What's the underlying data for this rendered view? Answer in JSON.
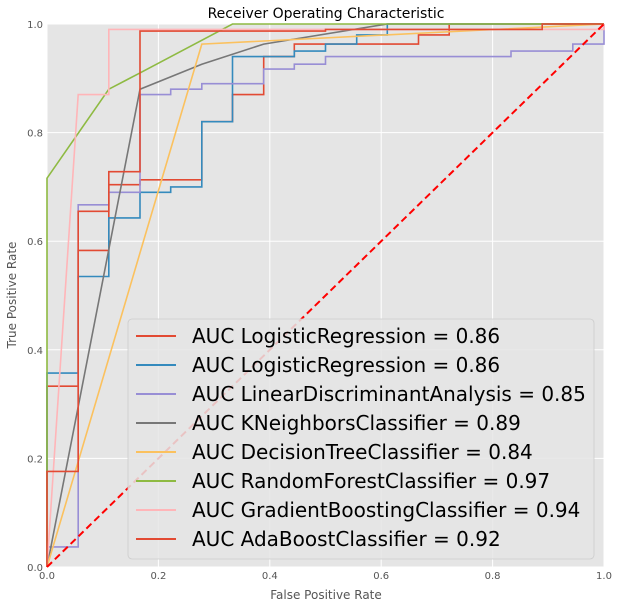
{
  "chart_data": {
    "type": "line",
    "title": "Receiver Operating Characteristic",
    "xlabel": "False Positive Rate",
    "ylabel": "True Positive Rate",
    "xlim": [
      0,
      1
    ],
    "ylim": [
      0,
      1
    ],
    "xticks": [
      "0.0",
      "0.2",
      "0.4",
      "0.6",
      "0.8",
      "1.0"
    ],
    "yticks": [
      "0.0",
      "0.2",
      "0.4",
      "0.6",
      "0.8",
      "1.0"
    ],
    "grid": true,
    "background": "#e5e5e5",
    "legend_position": "lower-right",
    "diagonal": {
      "points": [
        [
          0,
          0
        ],
        [
          1,
          1
        ]
      ],
      "color": "#ff0000",
      "style": "dashed"
    },
    "series": [
      {
        "name": "AUC LogisticRegression = 0.86",
        "color": "#e24a33",
        "points": [
          [
            0,
            0
          ],
          [
            0,
            0.333
          ],
          [
            0.056,
            0.333
          ],
          [
            0.056,
            0.583
          ],
          [
            0.111,
            0.583
          ],
          [
            0.111,
            0.704
          ],
          [
            0.167,
            0.704
          ],
          [
            0.167,
            0.713
          ],
          [
            0.278,
            0.713
          ],
          [
            0.278,
            0.82
          ],
          [
            0.333,
            0.82
          ],
          [
            0.333,
            0.87
          ],
          [
            0.389,
            0.87
          ],
          [
            0.389,
            0.94
          ],
          [
            0.444,
            0.94
          ],
          [
            0.444,
            0.963
          ],
          [
            0.667,
            0.963
          ],
          [
            0.667,
            0.98
          ],
          [
            0.722,
            0.98
          ],
          [
            0.722,
            1
          ],
          [
            1,
            1
          ]
        ]
      },
      {
        "name": "AUC LogisticRegression = 0.86",
        "color": "#348abd",
        "points": [
          [
            0,
            0
          ],
          [
            0,
            0.357
          ],
          [
            0.056,
            0.357
          ],
          [
            0.056,
            0.535
          ],
          [
            0.111,
            0.535
          ],
          [
            0.111,
            0.643
          ],
          [
            0.167,
            0.643
          ],
          [
            0.167,
            0.69
          ],
          [
            0.222,
            0.69
          ],
          [
            0.222,
            0.7
          ],
          [
            0.278,
            0.7
          ],
          [
            0.278,
            0.82
          ],
          [
            0.333,
            0.82
          ],
          [
            0.333,
            0.94
          ],
          [
            0.444,
            0.94
          ],
          [
            0.444,
            0.95
          ],
          [
            0.5,
            0.95
          ],
          [
            0.5,
            0.963
          ],
          [
            0.556,
            0.963
          ],
          [
            0.556,
            0.98
          ],
          [
            0.611,
            0.98
          ],
          [
            0.611,
            1
          ],
          [
            1,
            1
          ]
        ]
      },
      {
        "name": "AUC LinearDiscriminantAnalysis = 0.85",
        "color": "#988ed5",
        "points": [
          [
            0,
            0
          ],
          [
            0,
            0.037
          ],
          [
            0.056,
            0.037
          ],
          [
            0.056,
            0.667
          ],
          [
            0.111,
            0.667
          ],
          [
            0.111,
            0.69
          ],
          [
            0.167,
            0.69
          ],
          [
            0.167,
            0.87
          ],
          [
            0.222,
            0.87
          ],
          [
            0.222,
            0.88
          ],
          [
            0.278,
            0.88
          ],
          [
            0.278,
            0.89
          ],
          [
            0.389,
            0.89
          ],
          [
            0.389,
            0.917
          ],
          [
            0.444,
            0.917
          ],
          [
            0.444,
            0.926
          ],
          [
            0.5,
            0.926
          ],
          [
            0.5,
            0.94
          ],
          [
            0.833,
            0.94
          ],
          [
            0.833,
            0.95
          ],
          [
            0.944,
            0.95
          ],
          [
            0.944,
            0.963
          ],
          [
            1,
            0.963
          ],
          [
            1,
            1
          ]
        ]
      },
      {
        "name": "AUC KNeighborsClassifier = 0.89",
        "color": "#777777",
        "points": [
          [
            0,
            0
          ],
          [
            0.167,
            0.88
          ],
          [
            0.278,
            0.926
          ],
          [
            0.389,
            0.963
          ],
          [
            0.611,
            1
          ],
          [
            1,
            1
          ]
        ]
      },
      {
        "name": "AUC DecisionTreeClassifier = 0.84",
        "color": "#fbc15e",
        "points": [
          [
            0,
            0
          ],
          [
            0.278,
            0.963
          ],
          [
            1,
            1
          ]
        ]
      },
      {
        "name": "AUC RandomForestClassifier = 0.97",
        "color": "#8eba42",
        "points": [
          [
            0,
            0
          ],
          [
            0,
            0.716
          ],
          [
            0.111,
            0.88
          ],
          [
            0.167,
            0.91
          ],
          [
            0.333,
            1
          ],
          [
            1,
            1
          ]
        ]
      },
      {
        "name": "AUC GradientBoostingClassifier = 0.94",
        "color": "#ffb5b8",
        "points": [
          [
            0,
            0
          ],
          [
            0.056,
            0.87
          ],
          [
            0.111,
            0.87
          ],
          [
            0.111,
            0.99
          ],
          [
            0.167,
            0.99
          ],
          [
            1,
            0.99
          ],
          [
            1,
            1
          ]
        ]
      },
      {
        "name": "AUC AdaBoostClassifier = 0.92",
        "color": "#e24a33",
        "points": [
          [
            0,
            0
          ],
          [
            0,
            0.176
          ],
          [
            0.056,
            0.176
          ],
          [
            0.056,
            0.655
          ],
          [
            0.111,
            0.655
          ],
          [
            0.111,
            0.728
          ],
          [
            0.167,
            0.728
          ],
          [
            0.167,
            0.987
          ],
          [
            0.5,
            0.987
          ],
          [
            0.5,
            0.99
          ],
          [
            0.889,
            0.99
          ],
          [
            0.889,
            1
          ],
          [
            1,
            1
          ]
        ]
      }
    ]
  }
}
